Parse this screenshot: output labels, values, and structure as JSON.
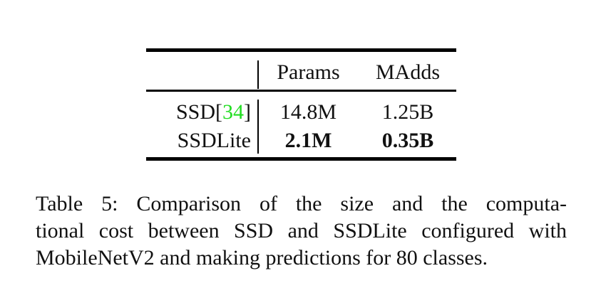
{
  "table": {
    "headers": [
      "",
      "Params",
      "MAdds"
    ],
    "rows": [
      {
        "method": "SSD",
        "citation_open": "[",
        "citation_number": "34",
        "citation_close": "]",
        "params": "14.8M",
        "madds": "1.25B"
      },
      {
        "method": "SSDLite",
        "params": "2.1M",
        "madds": "0.35B"
      }
    ]
  },
  "caption": {
    "label": "Table 5:",
    "lines": [
      "Comparison of the size and the computa-",
      "tional cost between SSD and SSDLite configured with",
      "MobileNetV2 and making predictions for 80 classes."
    ]
  },
  "colors": {
    "citation": "#22dd22",
    "text": "#111111",
    "rules": "#000000"
  }
}
